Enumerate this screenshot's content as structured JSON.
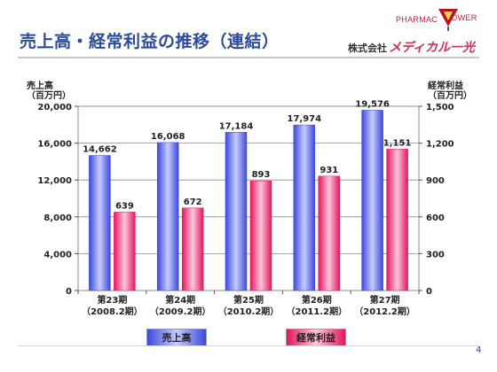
{
  "header": {
    "title": "売上高・経常利益の推移（連結）",
    "brand_part1": "PHARMAC",
    "brand_part2": "LOWER",
    "company_prefix": "株式会社",
    "company_name": "メディカル一光"
  },
  "page_number": "4",
  "chart_data": {
    "type": "bar",
    "categories": [
      [
        "第23期",
        "（2008.2期）"
      ],
      [
        "第24期",
        "（2009.2期）"
      ],
      [
        "第25期",
        "（2010.2期）"
      ],
      [
        "第26期",
        "（2011.2期）"
      ],
      [
        "第27期",
        "（2012.2期）"
      ]
    ],
    "series": [
      {
        "name": "売上高",
        "axis": "left",
        "values": [
          14662,
          16068,
          17184,
          17974,
          19576
        ],
        "labels": [
          "14,662",
          "16,068",
          "17,184",
          "17,974",
          "19,576"
        ],
        "color": "#3b49d8",
        "highlight": "#c6ccff"
      },
      {
        "name": "経常利益",
        "axis": "right",
        "values": [
          639,
          672,
          893,
          931,
          1151
        ],
        "labels": [
          "639",
          "672",
          "893",
          "931",
          "1,151"
        ],
        "color": "#e5145e",
        "highlight": "#ffc6dc"
      }
    ],
    "ylabel_left": [
      "売上高",
      "（百万円）"
    ],
    "ylabel_right": [
      "経常利益",
      "（百万円）"
    ],
    "ylim_left": [
      0,
      20000
    ],
    "yticks_left": [
      "0",
      "4,000",
      "8,000",
      "12,000",
      "16,000",
      "20,000"
    ],
    "ylim_right": [
      0,
      1500
    ],
    "yticks_right": [
      "0",
      "300",
      "600",
      "900",
      "1,200",
      "1,500"
    ],
    "grid": true,
    "legend": "bottom"
  }
}
